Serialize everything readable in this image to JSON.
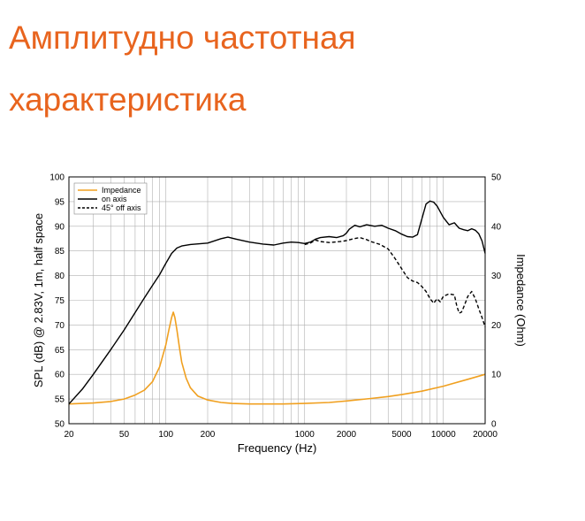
{
  "slide": {
    "title_lines": [
      "Амплитудно частотная",
      "характеристика"
    ]
  },
  "colors": {
    "title": "#e8641e",
    "impedance": "#f0a020",
    "on_axis": "#000000",
    "off_axis": "#000000",
    "grid": "#b0b0b0"
  },
  "chart_data": {
    "type": "line",
    "xlabel": "Frequency (Hz)",
    "ylabel": "SPL (dB) @ 2.83V, 1m, half space",
    "y2label": "Impedance (Ohm)",
    "xscale": "log",
    "xlim": [
      20,
      20000
    ],
    "ylim": [
      50,
      100
    ],
    "y2lim": [
      0,
      50
    ],
    "grid": true,
    "legend_position": "top-left",
    "x_tick_labels": [
      {
        "value": 20,
        "label": "20"
      },
      {
        "value": 50,
        "label": "50"
      },
      {
        "value": 100,
        "label": "100"
      },
      {
        "value": 200,
        "label": "200"
      },
      {
        "value": 1000,
        "label": "1000"
      },
      {
        "value": 2000,
        "label": "2000"
      },
      {
        "value": 5000,
        "label": "5000"
      },
      {
        "value": 10000,
        "label": "10000"
      },
      {
        "value": 20000,
        "label": "20000"
      }
    ],
    "y_ticks": [
      50,
      55,
      60,
      65,
      70,
      75,
      80,
      85,
      90,
      95,
      100
    ],
    "y2_ticks": [
      0,
      10,
      20,
      30,
      40,
      50
    ],
    "series": [
      {
        "name": "Impedance",
        "axis": "right",
        "style": "solid",
        "points": [
          [
            20,
            4
          ],
          [
            30,
            4.2
          ],
          [
            40,
            4.5
          ],
          [
            50,
            5
          ],
          [
            60,
            5.8
          ],
          [
            70,
            6.8
          ],
          [
            80,
            8.5
          ],
          [
            90,
            11.5
          ],
          [
            100,
            16
          ],
          [
            105,
            19
          ],
          [
            110,
            21.5
          ],
          [
            113,
            22.6
          ],
          [
            116,
            21.5
          ],
          [
            120,
            19
          ],
          [
            125,
            15.5
          ],
          [
            130,
            12.5
          ],
          [
            140,
            9.2
          ],
          [
            150,
            7.3
          ],
          [
            170,
            5.6
          ],
          [
            200,
            4.8
          ],
          [
            250,
            4.3
          ],
          [
            300,
            4.1
          ],
          [
            400,
            4
          ],
          [
            500,
            4
          ],
          [
            700,
            4
          ],
          [
            1000,
            4.1
          ],
          [
            1500,
            4.3
          ],
          [
            2000,
            4.6
          ],
          [
            3000,
            5.1
          ],
          [
            4000,
            5.5
          ],
          [
            5000,
            5.9
          ],
          [
            7000,
            6.6
          ],
          [
            10000,
            7.6
          ],
          [
            15000,
            9.0
          ],
          [
            20000,
            10
          ]
        ]
      },
      {
        "name": "on axis",
        "axis": "left",
        "style": "solid",
        "points": [
          [
            20,
            54
          ],
          [
            25,
            57
          ],
          [
            30,
            60
          ],
          [
            40,
            65
          ],
          [
            50,
            69
          ],
          [
            60,
            72.5
          ],
          [
            70,
            75.5
          ],
          [
            80,
            78
          ],
          [
            90,
            80.2
          ],
          [
            100,
            82.5
          ],
          [
            110,
            84.5
          ],
          [
            120,
            85.6
          ],
          [
            130,
            86
          ],
          [
            150,
            86.3
          ],
          [
            200,
            86.6
          ],
          [
            250,
            87.5
          ],
          [
            280,
            87.8
          ],
          [
            320,
            87.4
          ],
          [
            400,
            86.8
          ],
          [
            500,
            86.4
          ],
          [
            600,
            86.2
          ],
          [
            700,
            86.6
          ],
          [
            800,
            86.8
          ],
          [
            900,
            86.7
          ],
          [
            1000,
            86.5
          ],
          [
            1100,
            86.8
          ],
          [
            1200,
            87.4
          ],
          [
            1300,
            87.7
          ],
          [
            1500,
            87.9
          ],
          [
            1700,
            87.7
          ],
          [
            1900,
            88.1
          ],
          [
            2000,
            88.6
          ],
          [
            2100,
            89.4
          ],
          [
            2300,
            90.2
          ],
          [
            2500,
            89.9
          ],
          [
            2800,
            90.3
          ],
          [
            3200,
            90.0
          ],
          [
            3600,
            90.2
          ],
          [
            4000,
            89.6
          ],
          [
            4500,
            89.1
          ],
          [
            5000,
            88.4
          ],
          [
            5500,
            87.9
          ],
          [
            6000,
            87.8
          ],
          [
            6500,
            88.3
          ],
          [
            7000,
            91.5
          ],
          [
            7500,
            94.5
          ],
          [
            8000,
            95.1
          ],
          [
            8500,
            94.9
          ],
          [
            9000,
            94.1
          ],
          [
            10000,
            91.8
          ],
          [
            11000,
            90.3
          ],
          [
            12000,
            90.7
          ],
          [
            13000,
            89.6
          ],
          [
            14000,
            89.3
          ],
          [
            15000,
            89.1
          ],
          [
            16000,
            89.5
          ],
          [
            17000,
            89.2
          ],
          [
            18000,
            88.5
          ],
          [
            19000,
            87
          ],
          [
            20000,
            84.5
          ]
        ]
      },
      {
        "name": "45° off axis",
        "axis": "left",
        "style": "dashed",
        "points": [
          [
            1000,
            86.3
          ],
          [
            1100,
            86.6
          ],
          [
            1200,
            87.2
          ],
          [
            1300,
            86.9
          ],
          [
            1500,
            86.7
          ],
          [
            1800,
            86.9
          ],
          [
            2000,
            87.1
          ],
          [
            2200,
            87.4
          ],
          [
            2500,
            87.7
          ],
          [
            2800,
            87.3
          ],
          [
            3000,
            86.9
          ],
          [
            3500,
            86.3
          ],
          [
            4000,
            85.4
          ],
          [
            4500,
            83.4
          ],
          [
            5000,
            81.4
          ],
          [
            5500,
            79.6
          ],
          [
            6000,
            78.9
          ],
          [
            6500,
            78.6
          ],
          [
            7000,
            77.8
          ],
          [
            7500,
            76.8
          ],
          [
            8000,
            75.4
          ],
          [
            8500,
            74.4
          ],
          [
            9000,
            75.3
          ],
          [
            9500,
            74.7
          ],
          [
            10000,
            75.8
          ],
          [
            11000,
            76.3
          ],
          [
            12000,
            76.1
          ],
          [
            12500,
            73.8
          ],
          [
            13000,
            72.4
          ],
          [
            13500,
            72.6
          ],
          [
            14000,
            73.6
          ],
          [
            15000,
            75.8
          ],
          [
            16000,
            76.8
          ],
          [
            17000,
            75.3
          ],
          [
            18000,
            73.3
          ],
          [
            19000,
            71.5
          ],
          [
            20000,
            69.6
          ]
        ]
      }
    ]
  }
}
